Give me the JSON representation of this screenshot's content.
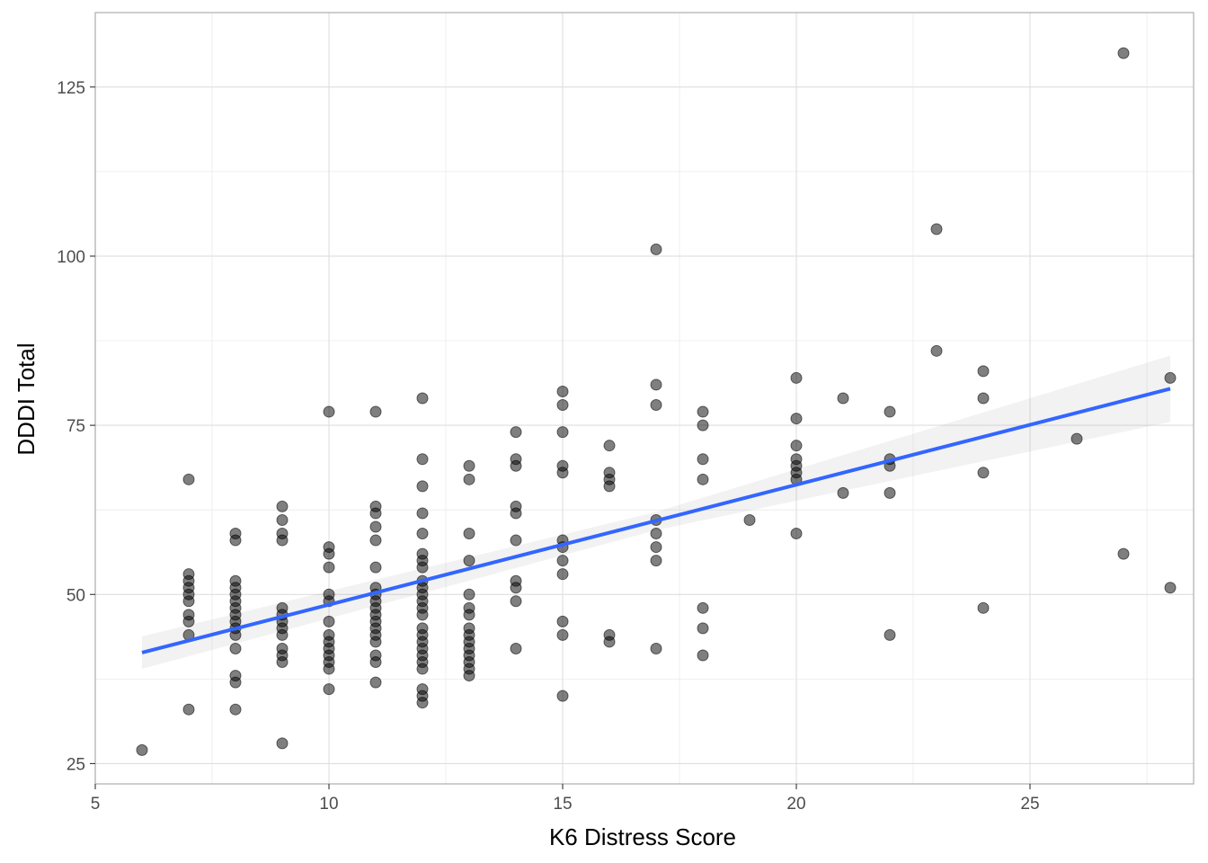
{
  "chart_data": {
    "type": "scatter",
    "title": "",
    "xlabel": "K6 Distress Score",
    "ylabel": "DDDI Total",
    "xlim": [
      5,
      28.5
    ],
    "ylim": [
      22,
      136
    ],
    "x_ticks": [
      5,
      10,
      15,
      20,
      25
    ],
    "x_tick_labels": [
      "5",
      "10",
      "15",
      "20",
      "25"
    ],
    "y_ticks": [
      25,
      50,
      75,
      100,
      125
    ],
    "y_tick_labels": [
      "25",
      "50",
      "75",
      "100",
      "125"
    ],
    "grid": true,
    "legend": "none",
    "point_color": "#000000",
    "point_opacity": 0.5,
    "fit_line": {
      "method": "linear regression",
      "color": "#3366FF",
      "band_color": "#999999",
      "x_range": [
        6,
        28
      ],
      "line": [
        [
          6,
          41.4
        ],
        [
          28,
          80.4
        ]
      ],
      "ci_lower": [
        [
          6,
          39.0
        ],
        [
          17,
          59.5
        ],
        [
          28,
          75.5
        ]
      ],
      "ci_upper": [
        [
          6,
          43.8
        ],
        [
          17,
          62.2
        ],
        [
          28,
          85.3
        ]
      ]
    },
    "points": [
      [
        6,
        27
      ],
      [
        7,
        67
      ],
      [
        7,
        53
      ],
      [
        7,
        52
      ],
      [
        7,
        51
      ],
      [
        7,
        50
      ],
      [
        7,
        49
      ],
      [
        7,
        47
      ],
      [
        7,
        46
      ],
      [
        7,
        44
      ],
      [
        7,
        33
      ],
      [
        8,
        59
      ],
      [
        8,
        58
      ],
      [
        8,
        52
      ],
      [
        8,
        51
      ],
      [
        8,
        50
      ],
      [
        8,
        49
      ],
      [
        8,
        48
      ],
      [
        8,
        47
      ],
      [
        8,
        46
      ],
      [
        8,
        45
      ],
      [
        8,
        44
      ],
      [
        8,
        42
      ],
      [
        8,
        38
      ],
      [
        8,
        37
      ],
      [
        8,
        33
      ],
      [
        9,
        63
      ],
      [
        9,
        61
      ],
      [
        9,
        59
      ],
      [
        9,
        58
      ],
      [
        9,
        48
      ],
      [
        9,
        47
      ],
      [
        9,
        46
      ],
      [
        9,
        45
      ],
      [
        9,
        44
      ],
      [
        9,
        42
      ],
      [
        9,
        41
      ],
      [
        9,
        40
      ],
      [
        9,
        28
      ],
      [
        10,
        77
      ],
      [
        10,
        57
      ],
      [
        10,
        56
      ],
      [
        10,
        54
      ],
      [
        10,
        50
      ],
      [
        10,
        49
      ],
      [
        10,
        46
      ],
      [
        10,
        44
      ],
      [
        10,
        43
      ],
      [
        10,
        42
      ],
      [
        10,
        41
      ],
      [
        10,
        40
      ],
      [
        10,
        39
      ],
      [
        10,
        36
      ],
      [
        11,
        77
      ],
      [
        11,
        63
      ],
      [
        11,
        62
      ],
      [
        11,
        60
      ],
      [
        11,
        58
      ],
      [
        11,
        54
      ],
      [
        11,
        51
      ],
      [
        11,
        50
      ],
      [
        11,
        49
      ],
      [
        11,
        48
      ],
      [
        11,
        47
      ],
      [
        11,
        46
      ],
      [
        11,
        45
      ],
      [
        11,
        44
      ],
      [
        11,
        43
      ],
      [
        11,
        41
      ],
      [
        11,
        40
      ],
      [
        11,
        37
      ],
      [
        12,
        79
      ],
      [
        12,
        70
      ],
      [
        12,
        66
      ],
      [
        12,
        62
      ],
      [
        12,
        59
      ],
      [
        12,
        56
      ],
      [
        12,
        55
      ],
      [
        12,
        54
      ],
      [
        12,
        52
      ],
      [
        12,
        51
      ],
      [
        12,
        50
      ],
      [
        12,
        49
      ],
      [
        12,
        48
      ],
      [
        12,
        47
      ],
      [
        12,
        45
      ],
      [
        12,
        44
      ],
      [
        12,
        43
      ],
      [
        12,
        42
      ],
      [
        12,
        41
      ],
      [
        12,
        40
      ],
      [
        12,
        39
      ],
      [
        12,
        36
      ],
      [
        12,
        35
      ],
      [
        12,
        34
      ],
      [
        13,
        69
      ],
      [
        13,
        67
      ],
      [
        13,
        59
      ],
      [
        13,
        55
      ],
      [
        13,
        50
      ],
      [
        13,
        48
      ],
      [
        13,
        47
      ],
      [
        13,
        45
      ],
      [
        13,
        44
      ],
      [
        13,
        43
      ],
      [
        13,
        42
      ],
      [
        13,
        41
      ],
      [
        13,
        40
      ],
      [
        13,
        39
      ],
      [
        13,
        38
      ],
      [
        14,
        74
      ],
      [
        14,
        70
      ],
      [
        14,
        69
      ],
      [
        14,
        63
      ],
      [
        14,
        62
      ],
      [
        14,
        58
      ],
      [
        14,
        52
      ],
      [
        14,
        51
      ],
      [
        14,
        49
      ],
      [
        14,
        42
      ],
      [
        15,
        80
      ],
      [
        15,
        78
      ],
      [
        15,
        74
      ],
      [
        15,
        69
      ],
      [
        15,
        68
      ],
      [
        15,
        58
      ],
      [
        15,
        57
      ],
      [
        15,
        55
      ],
      [
        15,
        53
      ],
      [
        15,
        46
      ],
      [
        15,
        44
      ],
      [
        15,
        35
      ],
      [
        16,
        72
      ],
      [
        16,
        68
      ],
      [
        16,
        67
      ],
      [
        16,
        66
      ],
      [
        16,
        44
      ],
      [
        16,
        43
      ],
      [
        17,
        101
      ],
      [
        17,
        81
      ],
      [
        17,
        78
      ],
      [
        17,
        61
      ],
      [
        17,
        59
      ],
      [
        17,
        57
      ],
      [
        17,
        55
      ],
      [
        17,
        42
      ],
      [
        18,
        77
      ],
      [
        18,
        75
      ],
      [
        18,
        70
      ],
      [
        18,
        67
      ],
      [
        18,
        48
      ],
      [
        18,
        45
      ],
      [
        18,
        41
      ],
      [
        19,
        61
      ],
      [
        20,
        82
      ],
      [
        20,
        76
      ],
      [
        20,
        72
      ],
      [
        20,
        70
      ],
      [
        20,
        69
      ],
      [
        20,
        68
      ],
      [
        20,
        67
      ],
      [
        20,
        59
      ],
      [
        21,
        79
      ],
      [
        21,
        65
      ],
      [
        22,
        77
      ],
      [
        22,
        70
      ],
      [
        22,
        69
      ],
      [
        22,
        65
      ],
      [
        22,
        44
      ],
      [
        23,
        104
      ],
      [
        23,
        86
      ],
      [
        24,
        83
      ],
      [
        24,
        79
      ],
      [
        24,
        68
      ],
      [
        24,
        48
      ],
      [
        26,
        73
      ],
      [
        27,
        130
      ],
      [
        27,
        56
      ],
      [
        28,
        82
      ],
      [
        28,
        51
      ]
    ]
  }
}
